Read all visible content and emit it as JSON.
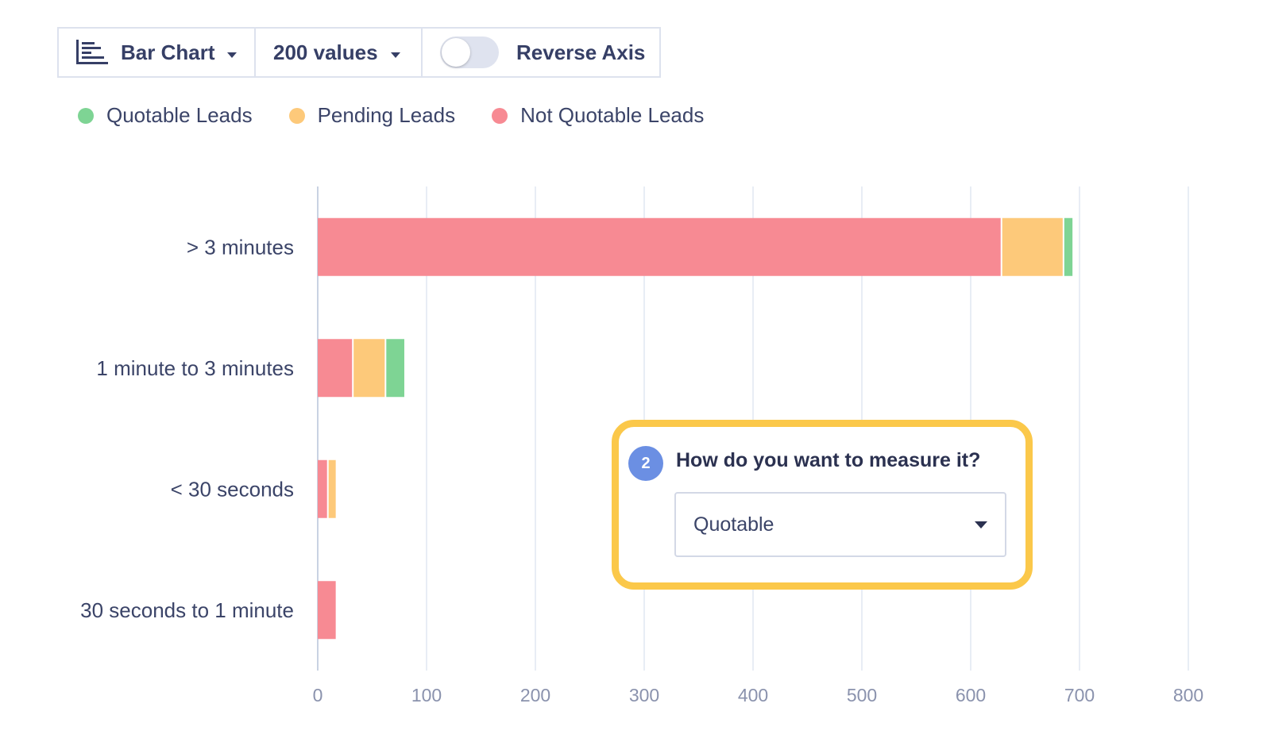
{
  "toolbar": {
    "chart_type_label": "Bar Chart",
    "values_label": "200 values",
    "reverse_axis_label": "Reverse Axis",
    "reverse_axis_on": false
  },
  "legend": [
    {
      "label": "Quotable Leads",
      "color": "#7ed494"
    },
    {
      "label": "Pending Leads",
      "color": "#fdc97a"
    },
    {
      "label": "Not Quotable Leads",
      "color": "#f78a93"
    }
  ],
  "callout": {
    "step": "2",
    "question": "How do you want to measure it?",
    "selected": "Quotable",
    "border_color": "#fbc84a"
  },
  "chart_data": {
    "type": "bar",
    "orientation": "horizontal",
    "stacked": true,
    "categories": [
      "> 3 minutes",
      "1 minute to 3 minutes",
      "< 30 seconds",
      "30 seconds to 1 minute"
    ],
    "series": [
      {
        "name": "Not Quotable Leads",
        "color": "#f78a93",
        "values": [
          629,
          33,
          10,
          18
        ]
      },
      {
        "name": "Pending Leads",
        "color": "#fdc97a",
        "values": [
          57,
          30,
          8,
          0
        ]
      },
      {
        "name": "Quotable Leads",
        "color": "#7ed494",
        "values": [
          9,
          18,
          0,
          0
        ]
      }
    ],
    "xlim": [
      0,
      800
    ],
    "xticks": [
      0,
      100,
      200,
      300,
      400,
      500,
      600,
      700,
      800
    ],
    "grid": true,
    "legend_position": "top-left"
  }
}
